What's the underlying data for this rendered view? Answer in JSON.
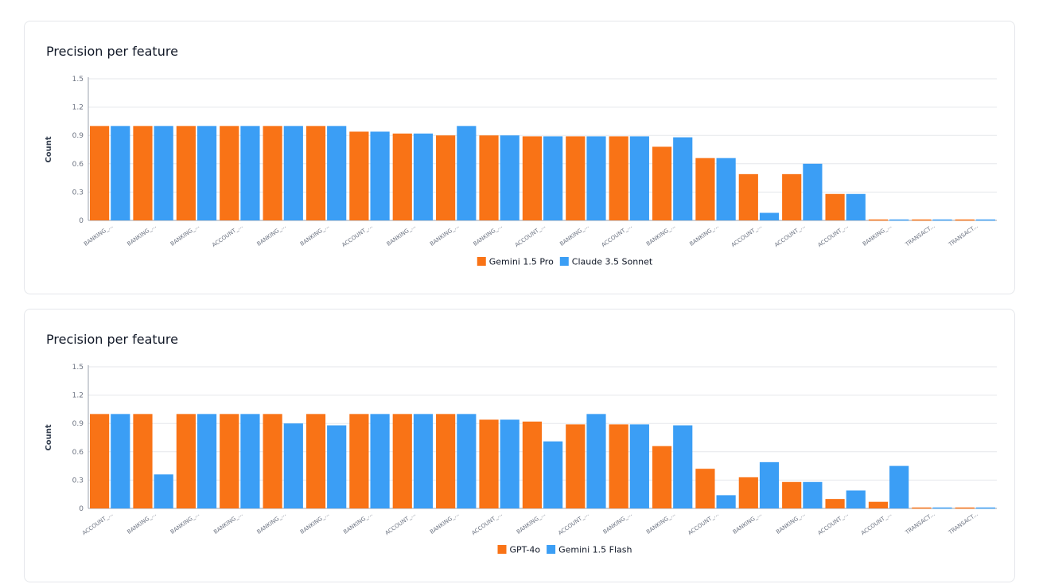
{
  "chart_data": [
    {
      "type": "bar",
      "title": "Precision per feature",
      "ylabel": "Count",
      "ylim": [
        0,
        1.5
      ],
      "yticks": [
        0,
        0.3,
        0.6,
        0.9,
        1.2,
        1.5
      ],
      "ytick_labels": [
        "0",
        "0.3",
        "0.6",
        "0.9",
        "1.2",
        "1.5"
      ],
      "grid": true,
      "legend_position": "bottom",
      "categories": [
        "BANKING_...",
        "BANKING_...",
        "BANKING_...",
        "ACCOUNT_...",
        "BANKING_...",
        "BANKING_...",
        "ACCOUNT_...",
        "BANKING_...",
        "BANKING_...",
        "BANKING_...",
        "ACCOUNT_...",
        "BANKING_...",
        "ACCOUNT_...",
        "BANKING_...",
        "BANKING_...",
        "ACCOUNT_...",
        "ACCOUNT_...",
        "ACCOUNT_...",
        "BANKING_...",
        "TRANSACT...",
        "TRANSACT..."
      ],
      "series": [
        {
          "name": "Gemini 1.5 Pro",
          "color": "#f97316",
          "values": [
            1.0,
            1.0,
            1.0,
            1.0,
            1.0,
            1.0,
            0.94,
            0.92,
            0.9,
            0.9,
            0.89,
            0.89,
            0.89,
            0.78,
            0.66,
            0.49,
            0.49,
            0.28,
            0.01,
            0.01,
            0.01
          ]
        },
        {
          "name": "Claude 3.5 Sonnet",
          "color": "#3b9ef5",
          "values": [
            1.0,
            1.0,
            1.0,
            1.0,
            1.0,
            1.0,
            0.94,
            0.92,
            1.0,
            0.9,
            0.89,
            0.89,
            0.89,
            0.88,
            0.66,
            0.08,
            0.6,
            0.28,
            0.01,
            0.01,
            0.01
          ]
        }
      ]
    },
    {
      "type": "bar",
      "title": "Precision per feature",
      "ylabel": "Count",
      "ylim": [
        0,
        1.5
      ],
      "yticks": [
        0,
        0.3,
        0.6,
        0.9,
        1.2,
        1.5
      ],
      "ytick_labels": [
        "0",
        "0.3",
        "0.6",
        "0.9",
        "1.2",
        "1.5"
      ],
      "grid": true,
      "legend_position": "bottom",
      "categories": [
        "ACCOUNT_...",
        "BANKING_...",
        "BANKING_...",
        "BANKING_...",
        "BANKING_...",
        "BANKING_...",
        "BANKING_...",
        "ACCOUNT_...",
        "BANKING_...",
        "ACCOUNT_...",
        "BANKING_...",
        "ACCOUNT_...",
        "BANKING_...",
        "BANKING_...",
        "ACCOUNT_...",
        "BANKING_...",
        "BANKING_...",
        "ACCOUNT_...",
        "ACCOUNT_...",
        "TRANSACT...",
        "TRANSACT..."
      ],
      "series": [
        {
          "name": "GPT-4o",
          "color": "#f97316",
          "values": [
            1.0,
            1.0,
            1.0,
            1.0,
            1.0,
            1.0,
            1.0,
            1.0,
            1.0,
            0.94,
            0.92,
            0.89,
            0.89,
            0.66,
            0.42,
            0.33,
            0.28,
            0.1,
            0.07,
            0.01,
            0.01
          ]
        },
        {
          "name": "Gemini 1.5 Flash",
          "color": "#3b9ef5",
          "values": [
            1.0,
            0.36,
            1.0,
            1.0,
            0.9,
            0.88,
            1.0,
            1.0,
            1.0,
            0.94,
            0.71,
            1.0,
            0.89,
            0.88,
            0.14,
            0.49,
            0.28,
            0.19,
            0.45,
            0.01,
            0.01
          ]
        }
      ]
    }
  ]
}
